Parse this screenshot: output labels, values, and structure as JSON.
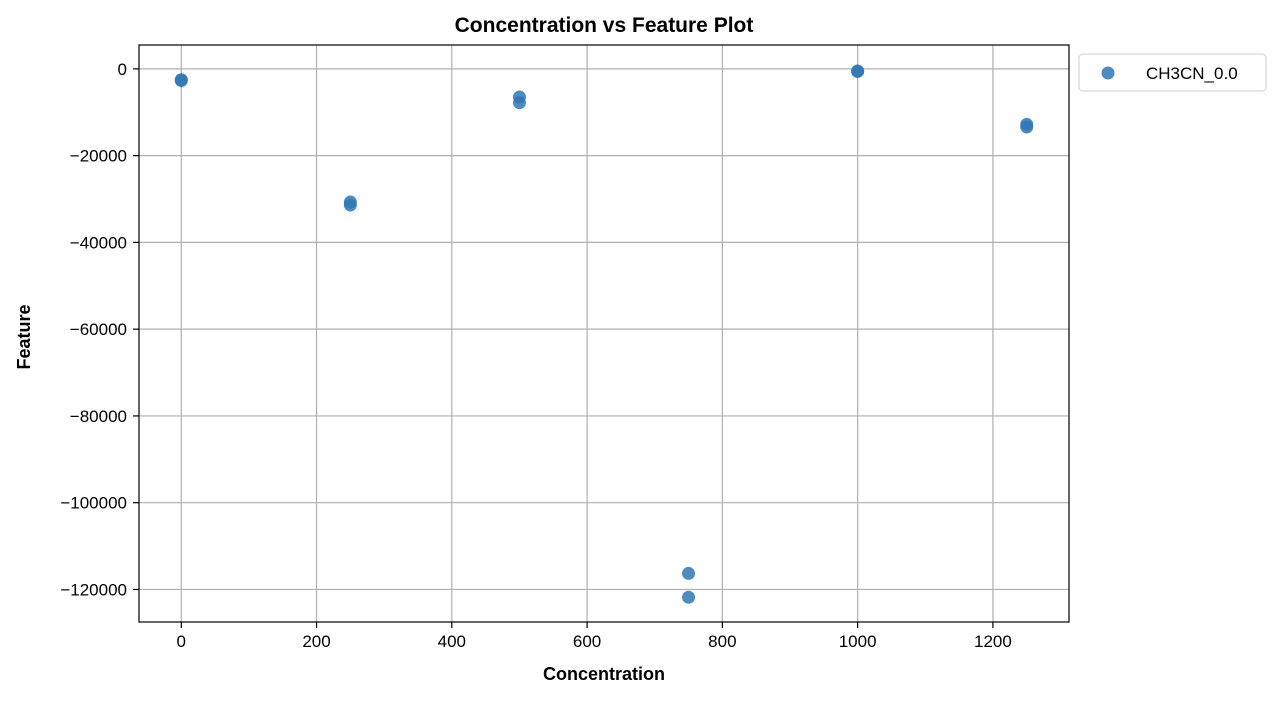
{
  "chart_data": {
    "type": "scatter",
    "title": "Concentration vs Feature Plot",
    "xlabel": "Concentration",
    "ylabel": "Feature",
    "xlim": [
      -62.5,
      1312.5
    ],
    "ylim": [
      -127500,
      5500
    ],
    "xticks": [
      0,
      200,
      400,
      600,
      800,
      1000,
      1200
    ],
    "yticks": [
      0,
      -20000,
      -40000,
      -60000,
      -80000,
      -100000,
      -120000
    ],
    "xtick_labels": [
      "0",
      "200",
      "400",
      "600",
      "800",
      "1000",
      "1200"
    ],
    "ytick_labels": [
      "0",
      "−20000",
      "−40000",
      "−60000",
      "−80000",
      "−100000",
      "−120000"
    ],
    "grid": true,
    "legend_position": "outside-top-right",
    "series": [
      {
        "name": "CH3CN_0.0",
        "color": "#2f77b4",
        "points": [
          {
            "x": 0,
            "y": -2500
          },
          {
            "x": 0,
            "y": -2700
          },
          {
            "x": 250,
            "y": -30700
          },
          {
            "x": 250,
            "y": -31400
          },
          {
            "x": 500,
            "y": -6500
          },
          {
            "x": 500,
            "y": -7800
          },
          {
            "x": 750,
            "y": -116300
          },
          {
            "x": 750,
            "y": -121800
          },
          {
            "x": 1000,
            "y": -500
          },
          {
            "x": 1000,
            "y": -600
          },
          {
            "x": 1250,
            "y": -12800
          },
          {
            "x": 1250,
            "y": -13400
          }
        ]
      }
    ]
  }
}
